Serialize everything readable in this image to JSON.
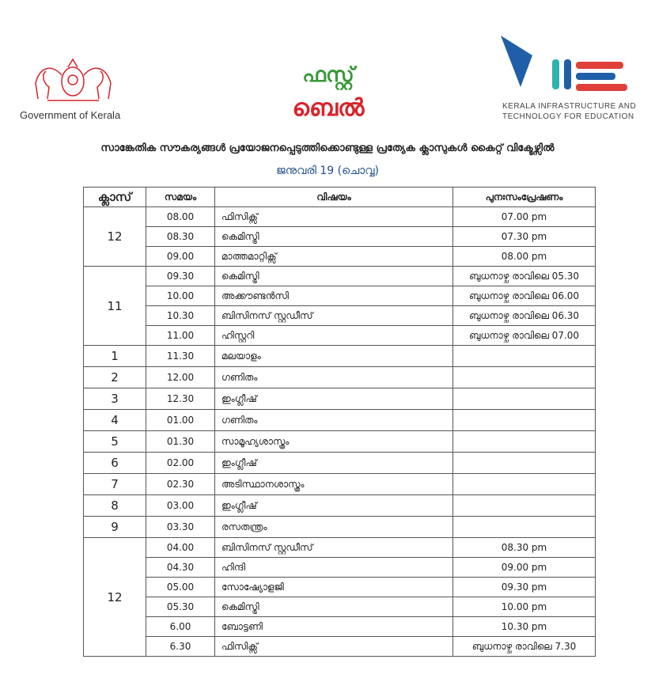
{
  "header": {
    "gov_label": "Government of Kerala",
    "center_logo": {
      "line1": "ഫസ്റ്റ്",
      "line2": "ബെൽ"
    },
    "kite_logo": {
      "line1": "KERALA INFRASTRUCTURE AND",
      "line2": "TECHNOLOGY FOR EDUCATION"
    },
    "title": "സാങ്കേതിക സൗകര്യങ്ങൾ പ്രയോജനപ്പെടുത്തിക്കൊണ്ടുള്ള പ്രത്യേക ക്ലാസുകൾ കൈറ്റ് വിക്ടേഴ്സിൽ",
    "date": "ജനുവരി 19 (ചൊവ്വ)"
  },
  "table": {
    "columns": [
      "ക്ലാസ്",
      "സമയം",
      "വിഷയം",
      "പുനഃസംപ്രേഷണം"
    ],
    "groups": [
      {
        "class": "12",
        "rows": [
          [
            "08.00",
            "ഫിസിക്സ്",
            "07.00 pm"
          ],
          [
            "08.30",
            "കെമിസ്ട്രി",
            "07.30 pm"
          ],
          [
            "09.00",
            "മാത്തമാറ്റിക്സ്",
            "08.00 pm"
          ]
        ]
      },
      {
        "class": "11",
        "rows": [
          [
            "09.30",
            "കെമിസ്ട്രി",
            "ബുധനാഴ്ച രാവിലെ 05.30"
          ],
          [
            "10.00",
            "അക്കൗണ്ടൻസി",
            "ബുധനാഴ്ച രാവിലെ 06.00"
          ],
          [
            "10.30",
            "ബിസിനസ് സ്റ്റഡീസ്",
            "ബുധനാഴ്ച രാവിലെ 06.30"
          ],
          [
            "11.00",
            "ഹിസ്റ്ററി",
            "ബുധനാഴ്ച രാവിലെ 07.00"
          ]
        ]
      },
      {
        "class": "1",
        "rows": [
          [
            "11.30",
            "മലയാളം",
            ""
          ]
        ]
      },
      {
        "class": "2",
        "rows": [
          [
            "12.00",
            "ഗണിതം",
            ""
          ]
        ]
      },
      {
        "class": "3",
        "rows": [
          [
            "12.30",
            "ഇംഗ്ലീഷ്",
            ""
          ]
        ]
      },
      {
        "class": "4",
        "rows": [
          [
            "01.00",
            "ഗണിതം",
            ""
          ]
        ]
      },
      {
        "class": "5",
        "rows": [
          [
            "01.30",
            "സാമൂഹ്യശാസ്ത്രം",
            ""
          ]
        ]
      },
      {
        "class": "6",
        "rows": [
          [
            "02.00",
            "ഇംഗ്ലീഷ്",
            ""
          ]
        ]
      },
      {
        "class": "7",
        "rows": [
          [
            "02.30",
            "അടിസ്ഥാനശാസ്ത്രം",
            ""
          ]
        ]
      },
      {
        "class": "8",
        "rows": [
          [
            "03.00",
            "ഇംഗ്ലീഷ്",
            ""
          ]
        ]
      },
      {
        "class": "9",
        "rows": [
          [
            "03.30",
            "രസതന്ത്രം",
            ""
          ]
        ]
      },
      {
        "class": "12",
        "rows": [
          [
            "04.00",
            "ബിസിനസ് സ്റ്റഡീസ്",
            "08.30 pm"
          ],
          [
            "04.30",
            "ഹിന്ദി",
            "09.00 pm"
          ],
          [
            "05.00",
            "സോഷ്യോളജി",
            "09.30 pm"
          ],
          [
            "05.30",
            "കെമിസ്ട്രി",
            "10.00 pm"
          ],
          [
            "6.00",
            "ബോട്ടണി",
            "10.30 pm"
          ],
          [
            "6.30",
            "ഫിസിക്സ്",
            "ബുധനാഴ്ച രാവിലെ 7.30"
          ]
        ]
      }
    ]
  },
  "colors": {
    "emblem": "#d8232a",
    "date": "#1f4e8c",
    "kite_blue": "#1f5fa8",
    "kite_red": "#e0403a",
    "kite_teal": "#2bb3b1"
  }
}
